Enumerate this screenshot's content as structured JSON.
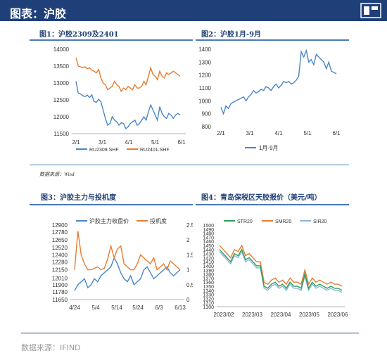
{
  "header": {
    "title": "图表：沪胶"
  },
  "source_small": "数据来源：Wind",
  "footer": "数据来源：IFIND",
  "chart_data": [
    {
      "id": "c1",
      "type": "line",
      "title": "图1：沪胶2309及2401",
      "xticks": [
        "2/1",
        "3/1",
        "4/1",
        "5/1",
        "6/1"
      ],
      "ylim": [
        11500,
        14000
      ],
      "yticks": [
        11500,
        12000,
        12500,
        13000,
        13500,
        14000
      ],
      "legend_position": "bottom",
      "series": [
        {
          "name": "RU2309.SHF",
          "color": "#4a86c8",
          "values": [
            13050,
            12700,
            12680,
            12620,
            12600,
            12640,
            12570,
            12650,
            12450,
            12430,
            12520,
            12440,
            12200,
            11950,
            11750,
            11800,
            12000,
            11900,
            11850,
            11750,
            11820,
            11800,
            11650,
            11700,
            11800,
            11850,
            11900,
            11750,
            11800,
            11900,
            12000,
            11900,
            12150,
            12350,
            12200,
            12050,
            11900,
            12300,
            12100,
            12000,
            11950,
            12100,
            12050,
            11950,
            12050,
            12100,
            12050
          ]
        },
        {
          "name": "RU2401.SHF",
          "color": "#e87c30",
          "values": [
            13750,
            13500,
            13480,
            13450,
            13480,
            13420,
            13450,
            13380,
            13350,
            13300,
            13400,
            13150,
            13000,
            12950,
            12800,
            12850,
            12900,
            13050,
            12950,
            12900,
            12750,
            12850,
            12800,
            12900,
            12850,
            12800,
            12950,
            12850,
            12850,
            12900,
            13050,
            12950,
            13200,
            13450,
            13250,
            13200,
            13100,
            13350,
            13200,
            13150,
            13300,
            13250,
            13300,
            13350,
            13300,
            13250,
            13200
          ]
        }
      ]
    },
    {
      "id": "c2",
      "type": "line",
      "title": "图2：沪胶1月-9月",
      "xticks": [
        "2/1",
        "3/1",
        "4/1",
        "5/1",
        "6/1"
      ],
      "ylim": [
        800,
        1400
      ],
      "yticks": [
        800,
        900,
        1000,
        1100,
        1200,
        1300,
        1400
      ],
      "legend_position": "bottom",
      "series": [
        {
          "name": "1月-9月",
          "color": "#4a86c8",
          "values": [
            950,
            900,
            960,
            940,
            980,
            990,
            1000,
            1010,
            1020,
            1030,
            1000,
            1030,
            1050,
            1080,
            1060,
            1070,
            1090,
            1080,
            1110,
            1100,
            1080,
            1110,
            1130,
            1100,
            1120,
            1150,
            1140,
            1150,
            1130,
            1140,
            1160,
            1190,
            1380,
            1340,
            1390,
            1300,
            1320,
            1280,
            1360,
            1340,
            1320,
            1300,
            1250,
            1300,
            1230,
            1220,
            1210
          ]
        }
      ]
    },
    {
      "id": "c3",
      "type": "line",
      "title": "图3：沪胶主力与投机度",
      "xticks": [
        "4/24",
        "5/4",
        "5/14",
        "5/24",
        "6/3",
        "6/13"
      ],
      "ylim_left": [
        11650,
        12900
      ],
      "yticks_left": [
        11650,
        11780,
        11900,
        12010,
        12150,
        12280,
        12400,
        12520,
        12650,
        12780,
        12900
      ],
      "ylim_right": [
        0,
        2.5
      ],
      "yticks_right": [
        0,
        0.5,
        1,
        1.5,
        2,
        2.5
      ],
      "legend_position": "top",
      "series": [
        {
          "name": "沪胶主力收盘价",
          "color": "#4a86c8",
          "axis": "left",
          "values": [
            11800,
            11900,
            11950,
            12000,
            11850,
            11900,
            12000,
            11950,
            12050,
            12100,
            12150,
            12200,
            12350,
            12250,
            12100,
            12000,
            11950,
            12050,
            11900,
            11950,
            12000,
            12150,
            12200,
            12100,
            12000,
            12050,
            12100,
            12150,
            12200,
            12100,
            12050,
            12100,
            12150
          ]
        },
        {
          "name": "投机度",
          "color": "#e87c30",
          "axis": "right",
          "values": [
            1.0,
            2.3,
            1.5,
            1.2,
            1.0,
            1.0,
            1.05,
            1.1,
            1.0,
            1.05,
            1.35,
            1.8,
            1.4,
            1.7,
            1.8,
            1.2,
            1.1,
            1.0,
            1.0,
            1.2,
            1.5,
            1.4,
            1.3,
            1.2,
            1.4,
            1.0,
            1.1,
            1.2,
            1.0,
            1.3,
            1.2,
            1.1,
            1.0
          ]
        }
      ]
    },
    {
      "id": "c4",
      "type": "line",
      "title": "图4：青岛保税区天胶报价（美元/吨）",
      "xticks": [
        "2023/02",
        "2023/03",
        "2023/04",
        "2023/05",
        "2023/06"
      ],
      "ylim": [
        1300,
        1500
      ],
      "yticks": [
        1300,
        1310,
        1320,
        1330,
        1340,
        1350,
        1360,
        1370,
        1380,
        1390,
        1400,
        1410,
        1420,
        1430,
        1440,
        1450,
        1460,
        1470,
        1480,
        1490,
        1500
      ],
      "yticks_shown": [
        1300,
        1320,
        1340,
        1360,
        1380,
        1400,
        1420,
        1440,
        1460,
        1480,
        1500
      ],
      "legend_position": "top",
      "series": [
        {
          "name": "STR20",
          "color": "#2e9e5b",
          "values": [
            1440,
            1430,
            1420,
            1410,
            1430,
            1425,
            1440,
            1415,
            1420,
            1410,
            1400,
            1400,
            1350,
            1345,
            1355,
            1360,
            1350,
            1355,
            1345,
            1360,
            1350,
            1350,
            1345,
            1380,
            1345,
            1360,
            1350,
            1355,
            1350,
            1345,
            1350,
            1345,
            1345,
            1340
          ]
        },
        {
          "name": "SMR20",
          "color": "#e87c30",
          "values": [
            1450,
            1440,
            1430,
            1420,
            1440,
            1435,
            1450,
            1425,
            1430,
            1420,
            1410,
            1410,
            1360,
            1355,
            1365,
            1370,
            1360,
            1365,
            1355,
            1370,
            1360,
            1360,
            1355,
            1390,
            1355,
            1370,
            1360,
            1365,
            1360,
            1355,
            1360,
            1355,
            1355,
            1350
          ]
        },
        {
          "name": "SIR20",
          "color": "#8db6dd",
          "values": [
            1435,
            1425,
            1415,
            1405,
            1425,
            1420,
            1435,
            1410,
            1415,
            1405,
            1395,
            1395,
            1345,
            1340,
            1350,
            1355,
            1345,
            1350,
            1340,
            1355,
            1345,
            1345,
            1340,
            1375,
            1340,
            1355,
            1345,
            1350,
            1345,
            1340,
            1345,
            1340,
            1340,
            1335
          ]
        }
      ]
    }
  ]
}
